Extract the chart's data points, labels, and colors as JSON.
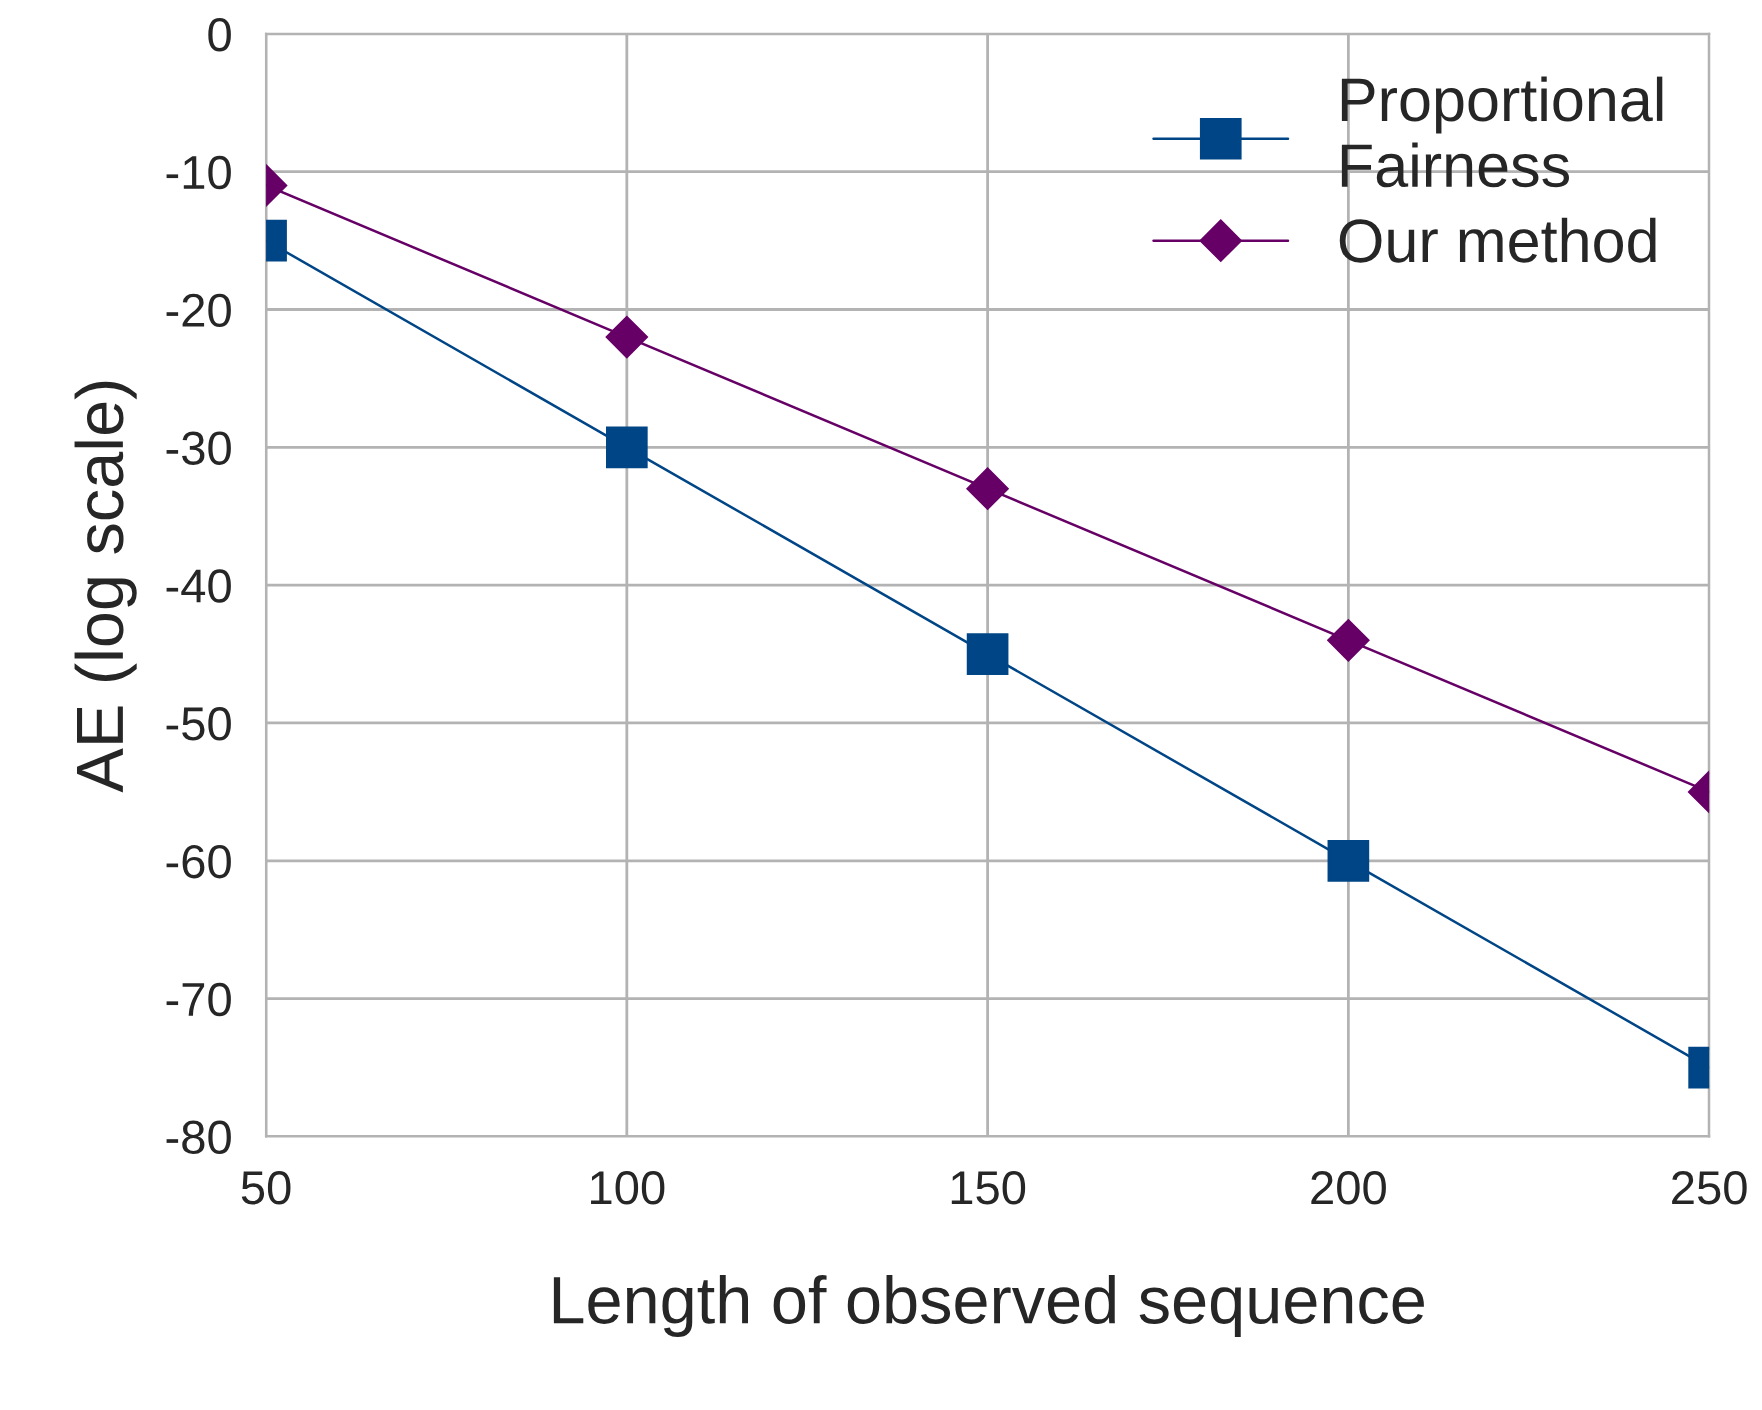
{
  "chart_data": {
    "type": "line",
    "xlabel": "Length of observed sequence",
    "ylabel": "AE (log scale)",
    "x": [
      50,
      100,
      150,
      200,
      250
    ],
    "series": [
      {
        "name": "Proportional\nFairness",
        "color": "#004586",
        "marker": "square",
        "values": [
          -15,
          -30,
          -45,
          -60,
          -75
        ]
      },
      {
        "name": "Our method",
        "color": "#660066",
        "marker": "diamond",
        "values": [
          -11,
          -22,
          -33,
          -44,
          -55
        ]
      }
    ],
    "xlim": [
      50,
      250
    ],
    "xticks": [
      50,
      100,
      150,
      200,
      250
    ],
    "ylim": [
      -80,
      0
    ],
    "yticks": [
      -80,
      -70,
      -60,
      -50,
      -40,
      -30,
      -20,
      -10,
      0
    ],
    "grid": true,
    "legend": "top right",
    "line_style": "solid"
  }
}
